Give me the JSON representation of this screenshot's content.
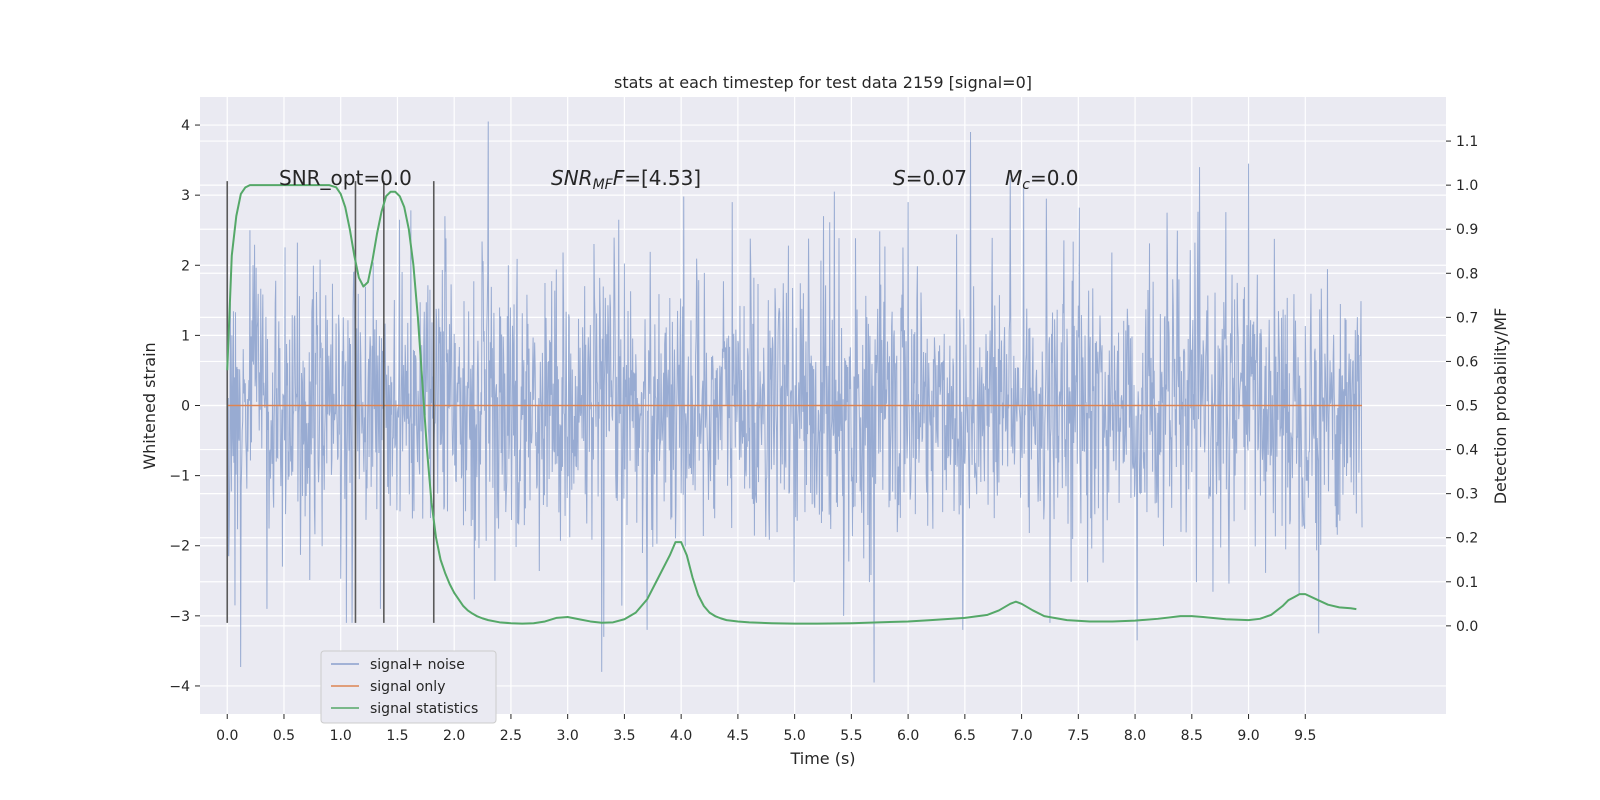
{
  "chart_data": {
    "type": "line",
    "title": "stats at each timestep for test data 2159 [signal=0]",
    "xlabel": "Time (s)",
    "ylabel_left": "Whitened strain",
    "ylabel_right": "Detection probability/MF",
    "xlim": [
      -0.24,
      10.74
    ],
    "ylim_left": [
      -4.4,
      4.4
    ],
    "ylim_right": [
      -0.2,
      1.2
    ],
    "x_ticks": [
      "0.0",
      "0.5",
      "1.0",
      "1.5",
      "2.0",
      "2.5",
      "3.0",
      "3.5",
      "4.0",
      "4.5",
      "5.0",
      "5.5",
      "6.0",
      "6.5",
      "7.0",
      "7.5",
      "8.0",
      "8.5",
      "9.0",
      "9.5"
    ],
    "y_ticks_left": [
      "4",
      "3",
      "2",
      "1",
      "0",
      "−1",
      "−2",
      "−3",
      "−4"
    ],
    "y_ticks_right": [
      "1.1",
      "1.0",
      "0.9",
      "0.8",
      "0.7",
      "0.6",
      "0.5",
      "0.4",
      "0.3",
      "0.2",
      "0.1",
      "0.0"
    ],
    "grid": true,
    "legend_position": "lower-left",
    "annotations": {
      "snr_opt": "SNR_opt=0.0",
      "snr_mf_name": "SNR",
      "snr_mf_sub": "MF",
      "snr_mf_value": "=[4.53]",
      "s_name": "S",
      "s_value": "=0.07",
      "mc_name": "M",
      "mc_sub": "c",
      "mc_value": "=0.0"
    },
    "vertical_markers": [
      0.0,
      1.13,
      1.38,
      1.82
    ],
    "marker_range": [
      -3.1,
      3.2
    ],
    "series": [
      {
        "name": "signal+ noise",
        "color": "#8aa0cc",
        "axis": "left",
        "x_range": [
          0.0,
          10.0
        ],
        "peak_events": [
          {
            "x": 0.07,
            "y": -2.85
          },
          {
            "x": 0.12,
            "y": -3.73
          },
          {
            "x": 0.2,
            "y": 2.5
          },
          {
            "x": 0.35,
            "y": -2.9
          },
          {
            "x": 1.05,
            "y": -3.1
          },
          {
            "x": 1.1,
            "y": -3.1
          },
          {
            "x": 1.35,
            "y": -2.9
          },
          {
            "x": 1.52,
            "y": 2.65
          },
          {
            "x": 1.92,
            "y": 2.7
          },
          {
            "x": 2.3,
            "y": 4.05
          },
          {
            "x": 2.36,
            "y": -2.5
          },
          {
            "x": 3.3,
            "y": -3.8
          },
          {
            "x": 3.32,
            "y": -3.3
          },
          {
            "x": 3.45,
            "y": 2.65
          },
          {
            "x": 3.7,
            "y": -3.2
          },
          {
            "x": 4.45,
            "y": 2.9
          },
          {
            "x": 5.35,
            "y": 3.05
          },
          {
            "x": 5.43,
            "y": -3.0
          },
          {
            "x": 5.7,
            "y": -3.95
          },
          {
            "x": 6.0,
            "y": 2.9
          },
          {
            "x": 6.48,
            "y": -3.2
          },
          {
            "x": 6.55,
            "y": 3.9
          },
          {
            "x": 6.9,
            "y": 3.25
          },
          {
            "x": 7.02,
            "y": 3.1
          },
          {
            "x": 7.22,
            "y": 2.95
          },
          {
            "x": 7.25,
            "y": -3.1
          },
          {
            "x": 8.02,
            "y": -3.35
          },
          {
            "x": 8.28,
            "y": 2.75
          },
          {
            "x": 9.0,
            "y": 3.45
          },
          {
            "x": 9.62,
            "y": -3.25
          }
        ]
      },
      {
        "name": "signal only",
        "color": "#dd8452",
        "axis": "left",
        "x": [
          0.0,
          10.0
        ],
        "y": [
          0.0,
          0.0
        ]
      },
      {
        "name": "signal statistics",
        "color": "#55a868",
        "axis": "right",
        "x": [
          0.0,
          0.04,
          0.08,
          0.12,
          0.16,
          0.2,
          0.3,
          0.4,
          0.5,
          0.6,
          0.7,
          0.8,
          0.9,
          0.96,
          1.0,
          1.04,
          1.08,
          1.12,
          1.16,
          1.2,
          1.24,
          1.28,
          1.32,
          1.36,
          1.4,
          1.44,
          1.48,
          1.52,
          1.56,
          1.6,
          1.64,
          1.68,
          1.72,
          1.76,
          1.8,
          1.84,
          1.88,
          1.92,
          1.96,
          2.0,
          2.04,
          2.08,
          2.12,
          2.16,
          2.2,
          2.25,
          2.3,
          2.4,
          2.5,
          2.6,
          2.7,
          2.8,
          2.9,
          3.0,
          3.1,
          3.2,
          3.3,
          3.4,
          3.5,
          3.6,
          3.7,
          3.8,
          3.9,
          3.95,
          4.0,
          4.05,
          4.1,
          4.15,
          4.2,
          4.25,
          4.3,
          4.35,
          4.4,
          4.5,
          4.6,
          4.8,
          5.0,
          5.2,
          5.5,
          6.0,
          6.2,
          6.5,
          6.7,
          6.8,
          6.9,
          6.95,
          7.0,
          7.1,
          7.2,
          7.4,
          7.6,
          7.8,
          8.0,
          8.2,
          8.4,
          8.5,
          8.6,
          8.8,
          9.0,
          9.1,
          9.2,
          9.3,
          9.35,
          9.4,
          9.45,
          9.5,
          9.6,
          9.7,
          9.8,
          9.9,
          9.95
        ],
        "y": [
          0.58,
          0.84,
          0.93,
          0.98,
          0.995,
          1.0,
          1.0,
          1.0,
          1.0,
          1.0,
          1.0,
          1.0,
          1.0,
          0.995,
          0.98,
          0.95,
          0.9,
          0.84,
          0.79,
          0.77,
          0.78,
          0.83,
          0.89,
          0.94,
          0.975,
          0.985,
          0.985,
          0.975,
          0.95,
          0.9,
          0.82,
          0.7,
          0.55,
          0.4,
          0.28,
          0.2,
          0.15,
          0.12,
          0.095,
          0.075,
          0.06,
          0.045,
          0.035,
          0.028,
          0.022,
          0.017,
          0.013,
          0.008,
          0.006,
          0.005,
          0.006,
          0.01,
          0.018,
          0.02,
          0.015,
          0.01,
          0.007,
          0.008,
          0.015,
          0.03,
          0.06,
          0.11,
          0.16,
          0.19,
          0.19,
          0.16,
          0.11,
          0.07,
          0.045,
          0.03,
          0.022,
          0.017,
          0.013,
          0.01,
          0.008,
          0.006,
          0.005,
          0.005,
          0.006,
          0.01,
          0.013,
          0.018,
          0.025,
          0.035,
          0.05,
          0.055,
          0.05,
          0.035,
          0.022,
          0.013,
          0.01,
          0.01,
          0.012,
          0.016,
          0.022,
          0.022,
          0.02,
          0.015,
          0.013,
          0.016,
          0.025,
          0.045,
          0.058,
          0.065,
          0.072,
          0.072,
          0.06,
          0.048,
          0.042,
          0.04,
          0.038
        ]
      }
    ]
  }
}
